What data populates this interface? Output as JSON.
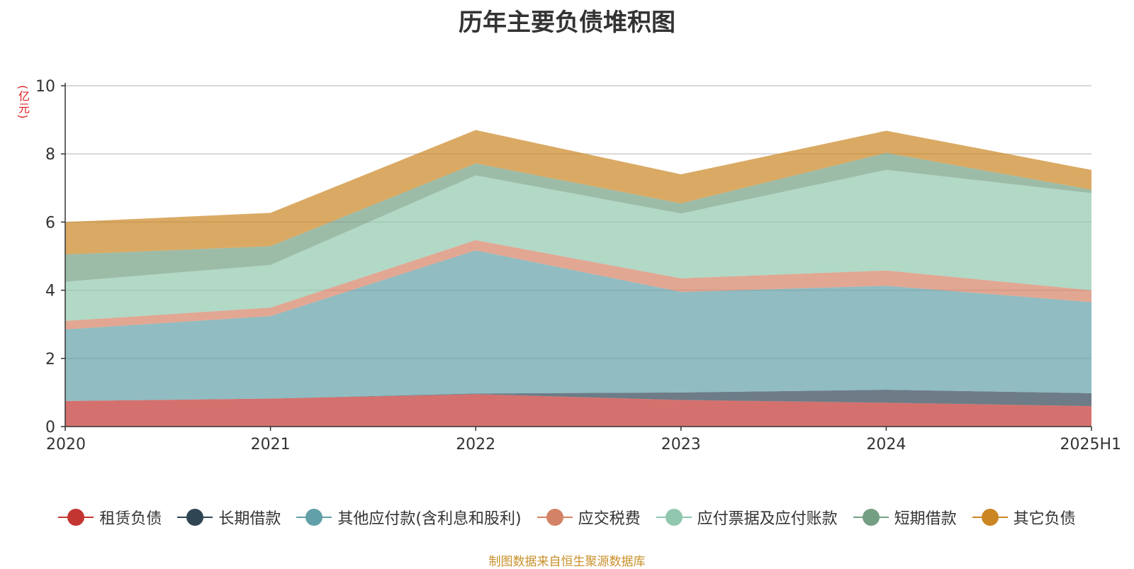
{
  "chart_data": {
    "type": "area",
    "stacked": true,
    "title": "历年主要负债堆积图",
    "unit_label": "(亿元)",
    "categories": [
      "2020",
      "2021",
      "2022",
      "2023",
      "2024",
      "2025H1"
    ],
    "ylim": [
      0,
      10
    ],
    "yticks": [
      0,
      2,
      4,
      6,
      8,
      10
    ],
    "grid": true,
    "legend_position": "bottom",
    "series": [
      {
        "name": "租赁负债",
        "color": "#c23531",
        "values": [
          0.75,
          0.82,
          0.95,
          0.78,
          0.7,
          0.6
        ]
      },
      {
        "name": "长期借款",
        "color": "#2f4554",
        "values": [
          0.0,
          0.0,
          0.02,
          0.22,
          0.38,
          0.38
        ]
      },
      {
        "name": "其他应付款(含利息和股利)",
        "color": "#61a0a8",
        "values": [
          2.1,
          2.42,
          4.2,
          2.95,
          3.05,
          2.67
        ]
      },
      {
        "name": "应交税费",
        "color": "#d48265",
        "values": [
          0.25,
          0.25,
          0.3,
          0.4,
          0.45,
          0.35
        ]
      },
      {
        "name": "应付票据及应付账款",
        "color": "#91c7ae",
        "values": [
          1.15,
          1.25,
          1.9,
          1.9,
          2.95,
          2.85
        ]
      },
      {
        "name": "短期借款",
        "color": "#749f83",
        "values": [
          0.8,
          0.55,
          0.35,
          0.3,
          0.5,
          0.1
        ]
      },
      {
        "name": "其它负债",
        "color": "#ca8622",
        "values": [
          0.95,
          0.98,
          0.98,
          0.85,
          0.65,
          0.58
        ]
      }
    ]
  },
  "footer": {
    "source": "制图数据来自恒生聚源数据库"
  }
}
